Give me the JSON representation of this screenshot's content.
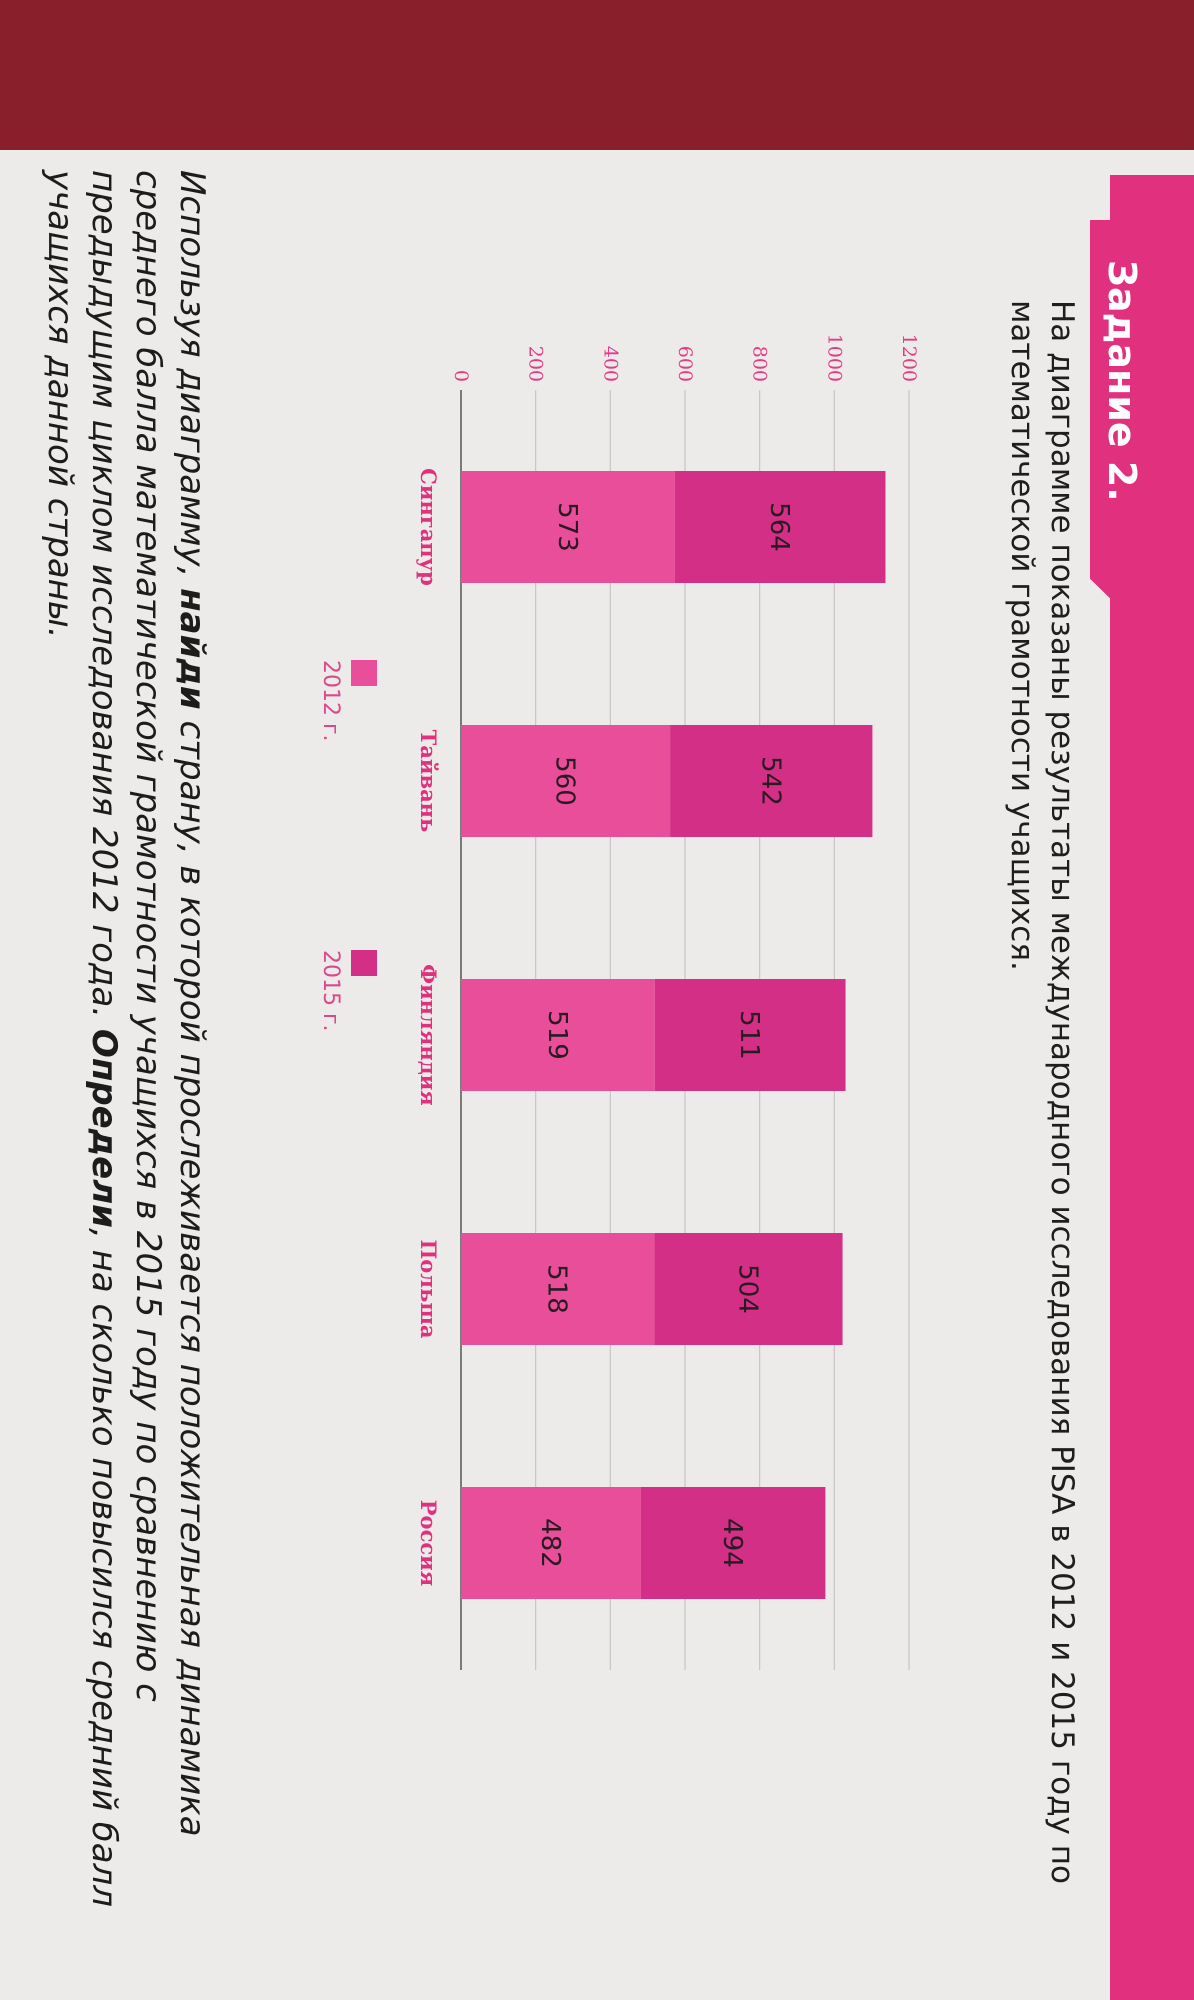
{
  "task": {
    "label": "Задание 2.",
    "intro": "На диаграмме показаны результаты международного исследования PISA в 2012 и 2015 году по математической грамотности учащихся.",
    "text_1": "Используя диаграмму, ",
    "text_bold_1": "найди",
    "text_2": " страну, в которой прослеживается положительная динамика среднего балла математической грамотности учащихся в 2015 году по сравнению с предыдущим циклом исследования 2012 года. ",
    "text_bold_2": "Определи",
    "text_3": ", на сколько повысился средний балл учащихся данной страны."
  },
  "colors": {
    "series_2012": "#e94e9a",
    "series_2015": "#d42f86",
    "accent": "#e0307e",
    "paper": "#ecebe9",
    "background": "#8a1f2c"
  },
  "chart_data": {
    "type": "bar",
    "stacked": true,
    "categories": [
      "Сингапур",
      "Тайвань",
      "Финляндия",
      "Польша",
      "Россия"
    ],
    "series": [
      {
        "name": "2012 г.",
        "values": [
          573,
          560,
          519,
          518,
          482
        ]
      },
      {
        "name": "2015 г.",
        "values": [
          564,
          542,
          511,
          504,
          494
        ]
      }
    ],
    "y_ticks": [
      "0",
      "200",
      "400",
      "600",
      "800",
      "1000",
      "1200"
    ],
    "ylim": [
      0,
      1200
    ],
    "grid": true,
    "legend": "bottom"
  }
}
